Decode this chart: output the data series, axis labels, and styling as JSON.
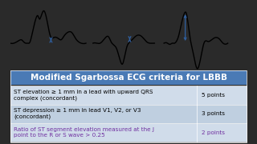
{
  "title": "Modified Sgarbossa ECG criteria for LBBB",
  "title_bg": "#4a7ab5",
  "title_color": "white",
  "title_fontsize": 7.5,
  "rows": [
    {
      "text": "ST elevation ≥ 1 mm in a lead with upward QRS\ncomplex (concordant)",
      "points": "5 points",
      "bg": "#d0dcea",
      "text_color": "black",
      "points_color": "black"
    },
    {
      "text": "ST depression ≥ 1 mm in lead V1, V2, or V3\n(concordant)",
      "points": "3 points",
      "bg": "#bfcfe0",
      "text_color": "black",
      "points_color": "black"
    },
    {
      "text": "Ratio of ST segment elevation measured at the J\npoint to the R or S wave > 0.25",
      "points": "2 points",
      "bg": "#d0dcea",
      "text_color": "#7030a0",
      "points_color": "#7030a0"
    }
  ],
  "background_color": "#2a2a2a",
  "ecg_bg": "#e8eef5",
  "arrow_color": "#3060a0"
}
